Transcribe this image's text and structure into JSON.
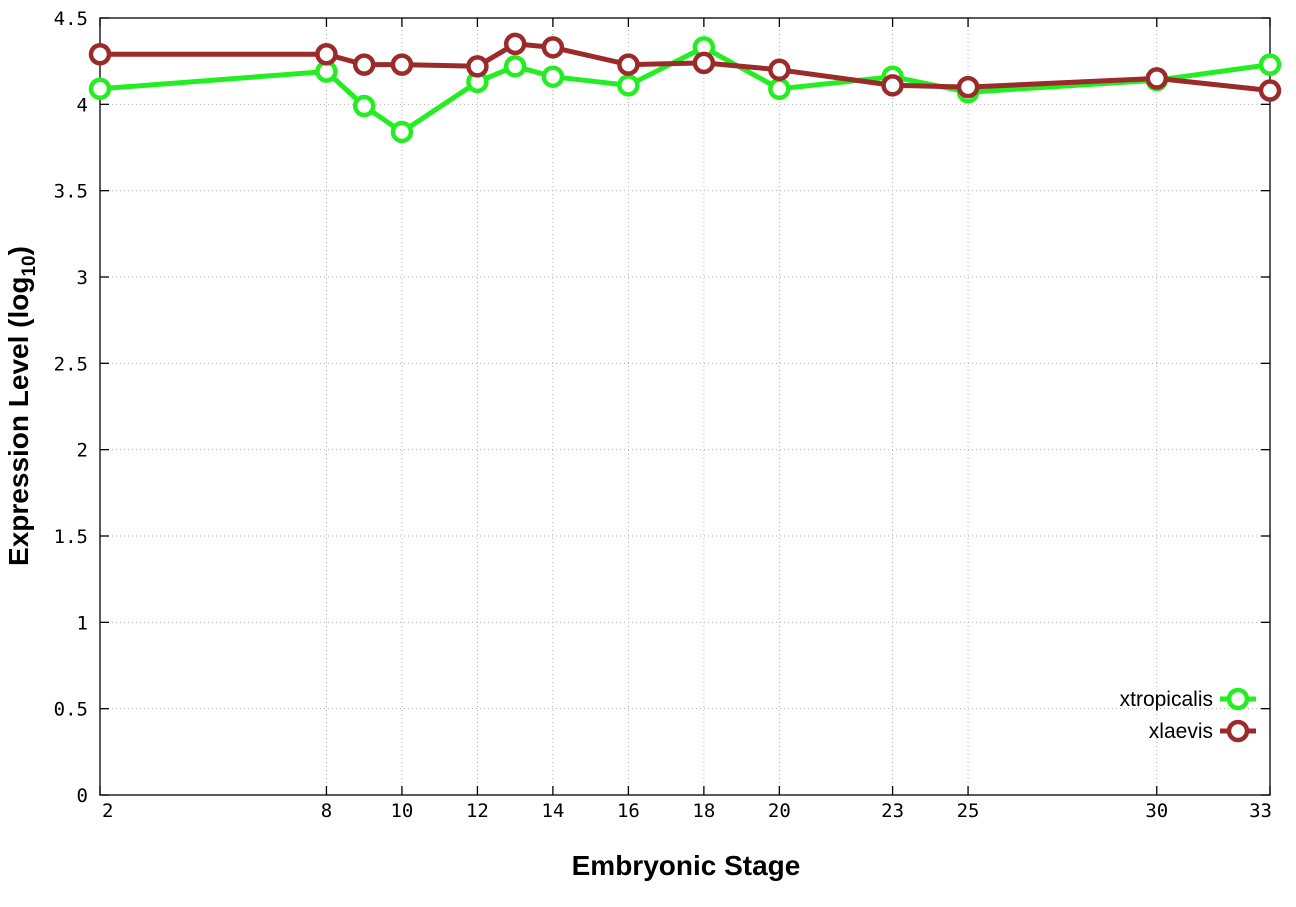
{
  "chart_data": {
    "type": "line",
    "xlabel": "Embryonic Stage",
    "ylabel_main": "Expression Level (log",
    "ylabel_sub": "10",
    "ylabel_close": ")",
    "xlim": [
      2,
      33
    ],
    "ylim": [
      0,
      4.5
    ],
    "x_ticks": [
      2,
      8,
      10,
      12,
      14,
      16,
      18,
      20,
      23,
      25,
      30,
      33
    ],
    "x_tick_labels": [
      "2",
      "8",
      "10",
      "12",
      "14",
      "16",
      "18",
      "20",
      "23",
      "25",
      "30",
      "33"
    ],
    "y_ticks": [
      0,
      0.5,
      1,
      1.5,
      2,
      2.5,
      3,
      3.5,
      4,
      4.5
    ],
    "y_tick_labels": [
      "0",
      "0.5",
      "1",
      "1.5",
      "2",
      "2.5",
      "3",
      "3.5",
      "4",
      "4.5"
    ],
    "grid": true,
    "legend_position": "bottom-right",
    "series": [
      {
        "name": "xtropicalis",
        "color": "#22ee22",
        "x": [
          2,
          8,
          9,
          10,
          12,
          13,
          14,
          16,
          18,
          20,
          23,
          25,
          30,
          33
        ],
        "y": [
          4.09,
          4.19,
          3.99,
          3.84,
          4.13,
          4.22,
          4.16,
          4.11,
          4.33,
          4.09,
          4.16,
          4.07,
          4.14,
          4.23
        ]
      },
      {
        "name": "xlaevis",
        "color": "#9b2a2a",
        "x": [
          2,
          8,
          9,
          10,
          12,
          13,
          14,
          16,
          18,
          20,
          23,
          25,
          30,
          33
        ],
        "y": [
          4.29,
          4.29,
          4.23,
          4.23,
          4.22,
          4.35,
          4.33,
          4.23,
          4.24,
          4.2,
          4.11,
          4.1,
          4.15,
          4.08
        ]
      }
    ]
  }
}
